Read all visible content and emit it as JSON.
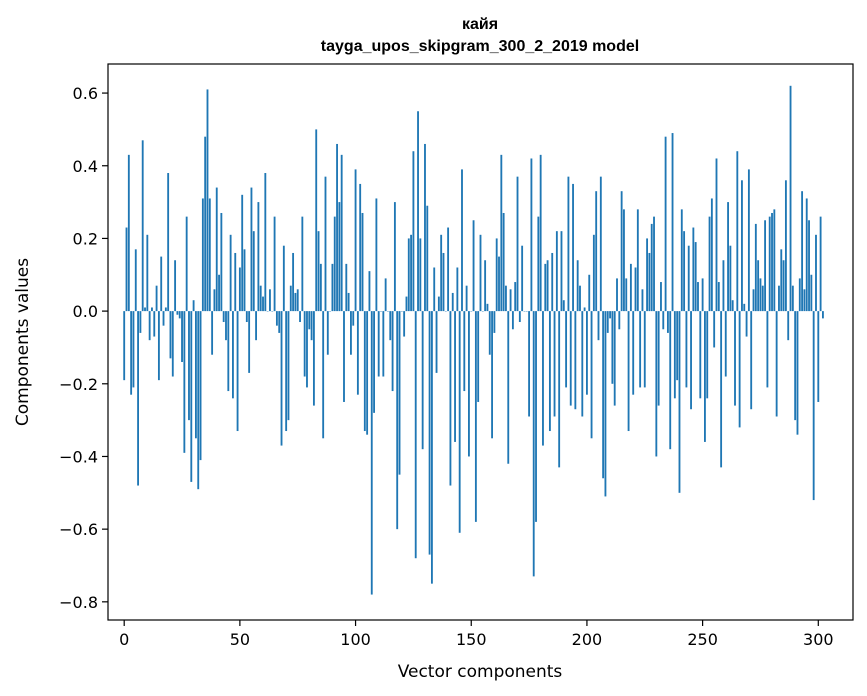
{
  "chart_data": {
    "type": "bar",
    "title": "кайя",
    "subtitle": "tayga_upos_skipgram_300_2_2019 model",
    "xlabel": "Vector components",
    "ylabel": "Components values",
    "xlim": [
      -7,
      315
    ],
    "ylim": [
      -0.85,
      0.68
    ],
    "xticks": [
      0,
      50,
      100,
      150,
      200,
      250,
      300
    ],
    "xtick_labels": [
      "0",
      "50",
      "100",
      "150",
      "200",
      "250",
      "300"
    ],
    "yticks": [
      -0.8,
      -0.6,
      -0.4,
      -0.2,
      0.0,
      0.2,
      0.4,
      0.6
    ],
    "ytick_labels": [
      "−0.8",
      "−0.6",
      "−0.4",
      "−0.2",
      "0.0",
      "0.2",
      "0.4",
      "0.6"
    ],
    "bar_color": "#1f77b4",
    "grid": false,
    "x_start": 0,
    "values": [
      -0.19,
      0.23,
      0.43,
      -0.23,
      -0.21,
      0.17,
      -0.48,
      -0.06,
      0.47,
      0.01,
      0.21,
      -0.08,
      0.01,
      -0.07,
      0.07,
      -0.19,
      0.15,
      -0.04,
      0.01,
      0.38,
      -0.13,
      -0.18,
      0.14,
      -0.01,
      -0.02,
      -0.14,
      -0.39,
      0.26,
      -0.3,
      -0.47,
      0.03,
      -0.35,
      -0.49,
      -0.41,
      0.31,
      0.48,
      0.61,
      0.31,
      -0.12,
      0.06,
      0.34,
      0.1,
      0.27,
      -0.03,
      -0.08,
      -0.22,
      0.21,
      -0.24,
      0.16,
      -0.33,
      0.12,
      0.32,
      0.17,
      -0.03,
      -0.17,
      0.34,
      0.22,
      -0.08,
      0.3,
      0.07,
      0.04,
      0.38,
      0.0,
      0.06,
      0.0,
      0.26,
      -0.04,
      -0.06,
      -0.37,
      0.18,
      -0.33,
      -0.3,
      0.07,
      0.16,
      0.05,
      0.06,
      -0.03,
      0.26,
      -0.18,
      -0.21,
      -0.05,
      -0.08,
      -0.26,
      0.5,
      0.22,
      0.13,
      -0.35,
      0.37,
      -0.12,
      0.0,
      0.13,
      0.26,
      0.46,
      0.3,
      0.43,
      -0.25,
      0.13,
      0.05,
      -0.12,
      -0.04,
      0.39,
      -0.23,
      0.35,
      0.27,
      -0.33,
      -0.34,
      0.11,
      -0.78,
      -0.28,
      0.31,
      -0.18,
      0.0,
      -0.18,
      0.09,
      0.0,
      -0.08,
      -0.22,
      0.3,
      -0.6,
      -0.45,
      0.0,
      -0.07,
      0.04,
      0.2,
      0.21,
      0.44,
      -0.68,
      0.55,
      0.2,
      -0.38,
      0.46,
      0.29,
      -0.67,
      -0.75,
      0.12,
      -0.17,
      0.04,
      0.21,
      0.16,
      0.0,
      0.23,
      -0.48,
      0.05,
      -0.36,
      0.12,
      -0.61,
      0.39,
      -0.22,
      0.07,
      -0.4,
      0.0,
      0.25,
      -0.58,
      -0.25,
      0.21,
      0.0,
      0.14,
      0.02,
      -0.12,
      -0.35,
      -0.06,
      0.2,
      0.15,
      0.43,
      0.27,
      0.07,
      -0.42,
      0.06,
      -0.05,
      0.08,
      0.37,
      -0.03,
      0.18,
      0.0,
      0.0,
      -0.29,
      0.42,
      -0.73,
      -0.58,
      0.26,
      0.43,
      -0.37,
      0.13,
      0.14,
      -0.33,
      0.16,
      -0.29,
      0.22,
      -0.43,
      0.22,
      0.03,
      -0.21,
      0.37,
      -0.26,
      0.35,
      -0.27,
      0.14,
      0.07,
      -0.29,
      0.01,
      -0.23,
      0.1,
      -0.35,
      0.21,
      0.33,
      -0.08,
      0.37,
      -0.46,
      -0.51,
      -0.06,
      -0.02,
      -0.2,
      -0.26,
      0.09,
      -0.05,
      0.33,
      0.28,
      0.09,
      -0.33,
      0.13,
      -0.23,
      0.12,
      0.28,
      -0.21,
      0.06,
      -0.21,
      0.2,
      0.16,
      0.24,
      0.26,
      -0.4,
      -0.26,
      0.08,
      -0.05,
      0.48,
      -0.06,
      -0.38,
      0.49,
      -0.24,
      -0.19,
      -0.5,
      0.28,
      0.22,
      -0.21,
      0.18,
      -0.27,
      0.23,
      0.19,
      0.08,
      -0.24,
      0.09,
      -0.36,
      -0.24,
      0.26,
      0.31,
      -0.1,
      0.42,
      0.08,
      -0.43,
      0.14,
      -0.18,
      0.3,
      0.18,
      0.03,
      -0.26,
      0.44,
      -0.32,
      0.36,
      0.02,
      -0.07,
      0.39,
      -0.27,
      0.06,
      0.24,
      0.14,
      0.09,
      0.07,
      0.25,
      -0.21,
      0.26,
      0.27,
      0.28,
      -0.29,
      0.07,
      0.17,
      0.14,
      0.36,
      -0.08,
      0.62,
      0.07,
      -0.3,
      -0.34,
      0.09,
      0.33,
      0.06,
      0.31,
      0.25,
      0.1,
      -0.52,
      0.21,
      -0.25,
      0.26,
      -0.02
    ],
    "values_unit_note": null
  }
}
